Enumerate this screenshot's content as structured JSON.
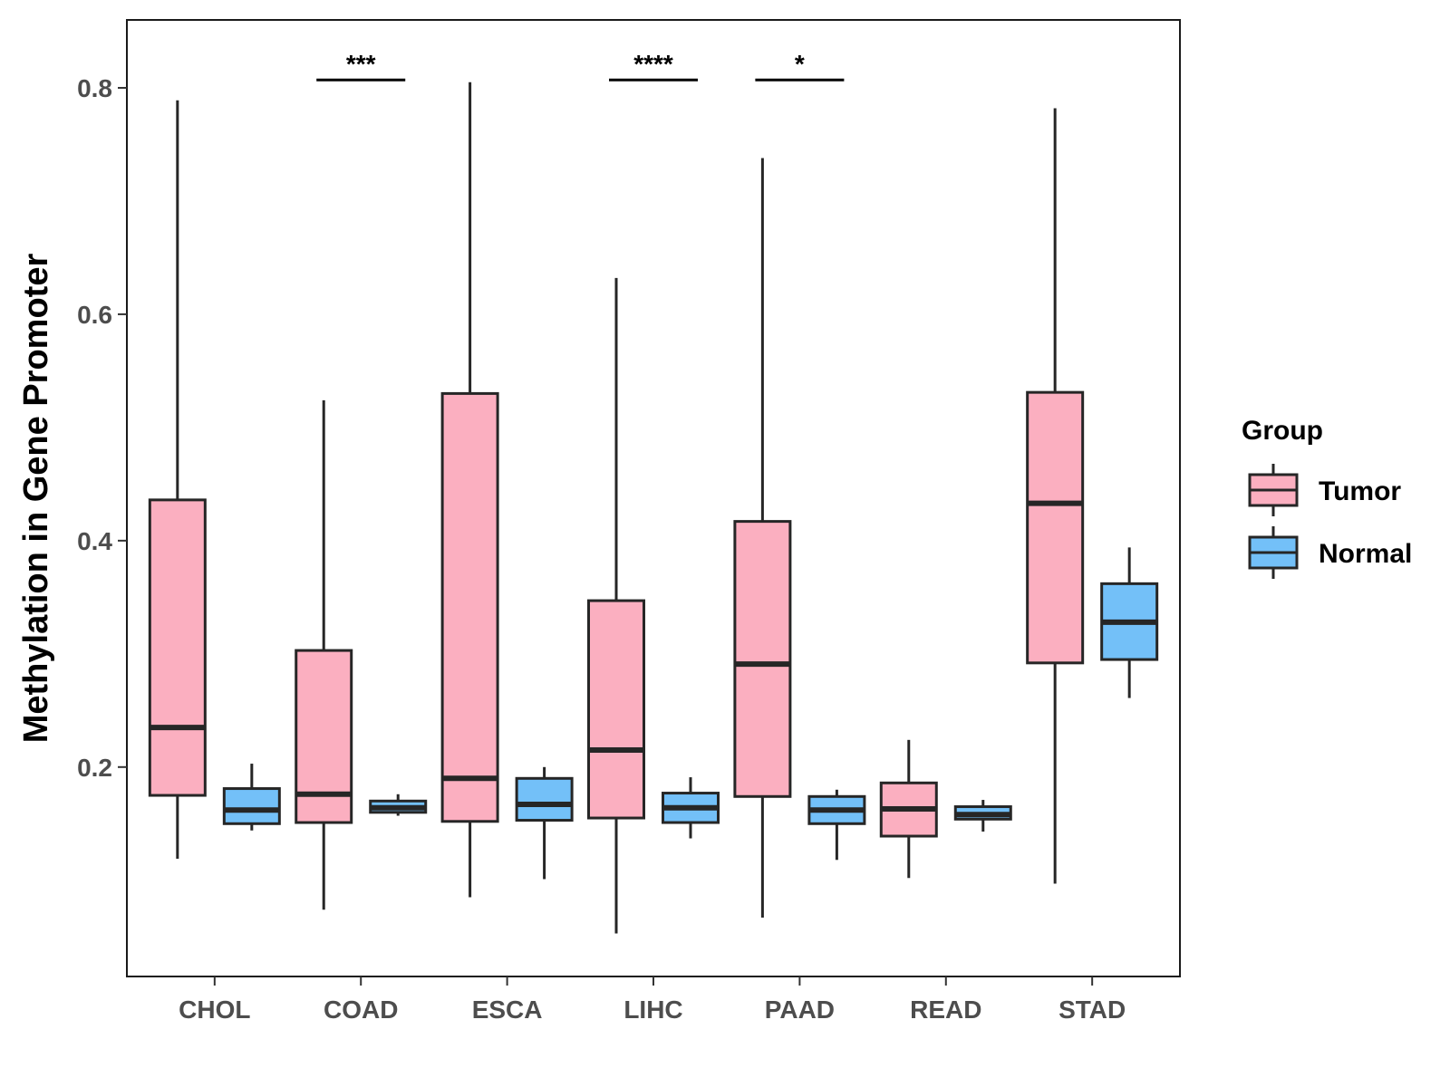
{
  "chart_data": {
    "type": "boxplot",
    "title": "",
    "xlabel": "",
    "ylabel": "Methylation in Gene Promoter",
    "ylim": [
      0.015,
      0.86
    ],
    "yticks": [
      0.2,
      0.4,
      0.6,
      0.8
    ],
    "ytick_labels": [
      "0.2",
      "0.4",
      "0.6",
      "0.8"
    ],
    "grid": false,
    "categories": [
      "CHOL",
      "COAD",
      "ESCA",
      "LIHC",
      "PAAD",
      "READ",
      "STAD"
    ],
    "legend": {
      "title": "Group",
      "position": "right",
      "entries": [
        {
          "name": "Tumor",
          "color": "#fbafc0"
        },
        {
          "name": "Normal",
          "color": "#73c0f8"
        }
      ]
    },
    "series": [
      {
        "name": "Tumor",
        "color": "#fbafc0",
        "boxes": [
          {
            "category": "CHOL",
            "min": 0.119,
            "q1": 0.175,
            "median": 0.235,
            "q3": 0.436,
            "max": 0.789
          },
          {
            "category": "COAD",
            "min": 0.074,
            "q1": 0.151,
            "median": 0.176,
            "q3": 0.303,
            "max": 0.524
          },
          {
            "category": "ESCA",
            "min": 0.085,
            "q1": 0.152,
            "median": 0.19,
            "q3": 0.53,
            "max": 0.805
          },
          {
            "category": "LIHC",
            "min": 0.053,
            "q1": 0.155,
            "median": 0.215,
            "q3": 0.347,
            "max": 0.632
          },
          {
            "category": "PAAD",
            "min": 0.067,
            "q1": 0.174,
            "median": 0.291,
            "q3": 0.417,
            "max": 0.738
          },
          {
            "category": "READ",
            "min": 0.102,
            "q1": 0.139,
            "median": 0.163,
            "q3": 0.186,
            "max": 0.224
          },
          {
            "category": "STAD",
            "min": 0.097,
            "q1": 0.292,
            "median": 0.433,
            "q3": 0.531,
            "max": 0.782
          }
        ]
      },
      {
        "name": "Normal",
        "color": "#73c0f8",
        "boxes": [
          {
            "category": "CHOL",
            "min": 0.144,
            "q1": 0.15,
            "median": 0.162,
            "q3": 0.181,
            "max": 0.203
          },
          {
            "category": "COAD",
            "min": 0.157,
            "q1": 0.16,
            "median": 0.164,
            "q3": 0.17,
            "max": 0.176
          },
          {
            "category": "ESCA",
            "min": 0.101,
            "q1": 0.153,
            "median": 0.167,
            "q3": 0.19,
            "max": 0.2
          },
          {
            "category": "LIHC",
            "min": 0.137,
            "q1": 0.151,
            "median": 0.164,
            "q3": 0.177,
            "max": 0.191
          },
          {
            "category": "PAAD",
            "min": 0.118,
            "q1": 0.15,
            "median": 0.162,
            "q3": 0.174,
            "max": 0.18
          },
          {
            "category": "READ",
            "min": 0.143,
            "q1": 0.154,
            "median": 0.158,
            "q3": 0.165,
            "max": 0.171
          },
          {
            "category": "STAD",
            "min": 0.261,
            "q1": 0.295,
            "median": 0.328,
            "q3": 0.362,
            "max": 0.394
          }
        ]
      }
    ],
    "annotations": [
      {
        "category": "COAD",
        "label": "***",
        "y": 0.807
      },
      {
        "category": "LIHC",
        "label": "****",
        "y": 0.807
      },
      {
        "category": "PAAD",
        "label": "*",
        "y": 0.807
      }
    ]
  }
}
